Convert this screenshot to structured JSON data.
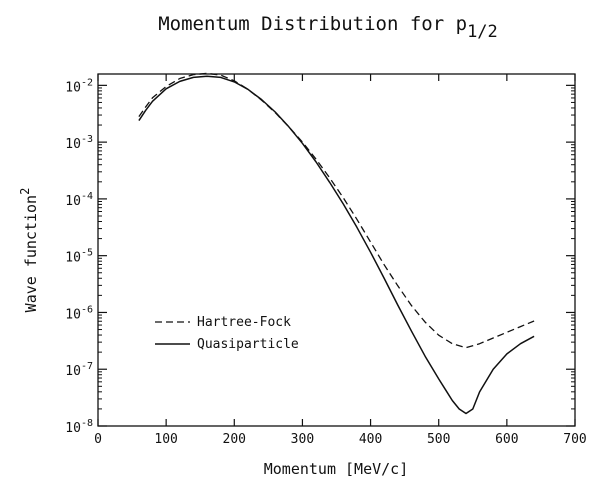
{
  "chart_data": {
    "type": "line",
    "title": "Momentum Distribution for p",
    "title_subscript": "1/2",
    "xlabel": "Momentum [MeV/c]",
    "ylabel": "Wave function",
    "ylabel_superscript": "2",
    "xlim": [
      0,
      700
    ],
    "ylim_log10": [
      -8,
      -1.8
    ],
    "x_ticks": [
      0,
      100,
      200,
      300,
      400,
      500,
      600,
      700
    ],
    "x_tick_labels": [
      "0",
      "100",
      "200",
      "300",
      "400",
      "500",
      "600",
      "700"
    ],
    "y_ticks_log10": [
      -8,
      -7,
      -6,
      -5,
      -4,
      -3,
      -2
    ],
    "y_tick_base": "10",
    "y_tick_exponents": [
      "-8",
      "-7",
      "-6",
      "-5",
      "-4",
      "-3",
      "-2"
    ],
    "legend_position": "left-lower",
    "series": [
      {
        "name": "Hartree-Fock",
        "style": "dashed",
        "x": [
          60,
          70,
          80,
          100,
          120,
          140,
          160,
          180,
          200,
          220,
          240,
          260,
          280,
          300,
          320,
          340,
          360,
          380,
          400,
          420,
          440,
          460,
          480,
          500,
          520,
          540,
          560,
          580,
          600,
          620,
          640
        ],
        "log10_y": [
          -2.55,
          -2.38,
          -2.22,
          -2.02,
          -1.88,
          -1.81,
          -1.79,
          -1.82,
          -1.92,
          -2.07,
          -2.26,
          -2.48,
          -2.73,
          -3.0,
          -3.3,
          -3.63,
          -3.98,
          -4.36,
          -4.76,
          -5.16,
          -5.53,
          -5.88,
          -6.17,
          -6.4,
          -6.55,
          -6.62,
          -6.55,
          -6.45,
          -6.35,
          -6.25,
          -6.15
        ]
      },
      {
        "name": "Quasiparticle",
        "style": "solid",
        "x": [
          60,
          70,
          80,
          100,
          120,
          140,
          160,
          180,
          200,
          220,
          240,
          260,
          280,
          300,
          320,
          340,
          360,
          380,
          400,
          420,
          440,
          460,
          480,
          500,
          510,
          520,
          530,
          540,
          550,
          560,
          580,
          600,
          620,
          640
        ],
        "log10_y": [
          -2.62,
          -2.44,
          -2.28,
          -2.06,
          -1.93,
          -1.86,
          -1.84,
          -1.86,
          -1.94,
          -2.07,
          -2.25,
          -2.47,
          -2.73,
          -3.02,
          -3.35,
          -3.71,
          -4.09,
          -4.5,
          -4.94,
          -5.4,
          -5.87,
          -6.33,
          -6.77,
          -7.17,
          -7.36,
          -7.55,
          -7.7,
          -7.78,
          -7.7,
          -7.4,
          -7.0,
          -6.73,
          -6.55,
          -6.42
        ]
      }
    ]
  }
}
